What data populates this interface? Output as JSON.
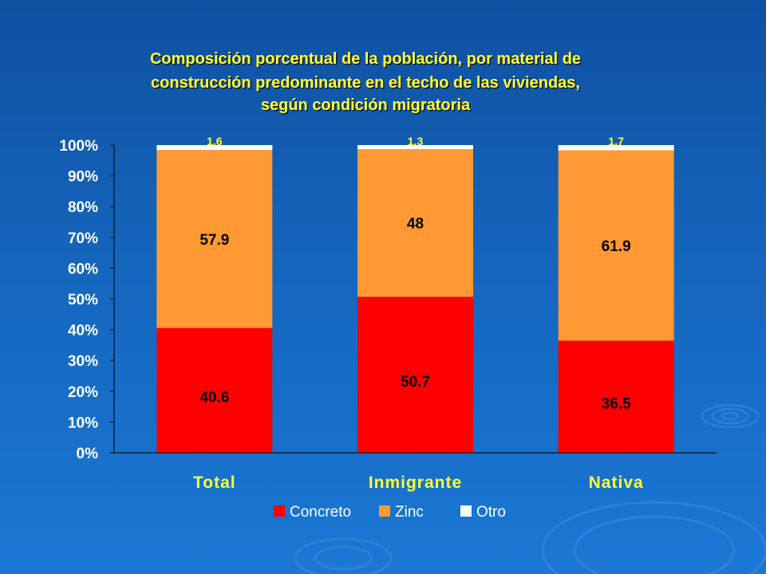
{
  "chart_data": {
    "type": "bar",
    "stacked": true,
    "percent_stacked": true,
    "title_lines": [
      "Composición porcentual de la población, por material de",
      "construcción predominante en el techo de las viviendas,",
      "según condición migratoria"
    ],
    "categories": [
      "Total",
      "Inmigrante",
      "Nativa"
    ],
    "series": [
      {
        "name": "Concreto",
        "values": [
          40.6,
          50.7,
          36.5
        ],
        "color": "#ff0000"
      },
      {
        "name": "Zinc",
        "values": [
          57.9,
          48,
          61.9
        ],
        "color": "#ff9933"
      },
      {
        "name": "Otro",
        "values": [
          1.6,
          1.3,
          1.7
        ],
        "color": "#ffffff"
      }
    ],
    "ylim": [
      0,
      100
    ],
    "yticks": [
      "0%",
      "10%",
      "20%",
      "30%",
      "40%",
      "50%",
      "60%",
      "70%",
      "80%",
      "90%",
      "100%"
    ],
    "legend_position": "bottom",
    "grid": false
  }
}
